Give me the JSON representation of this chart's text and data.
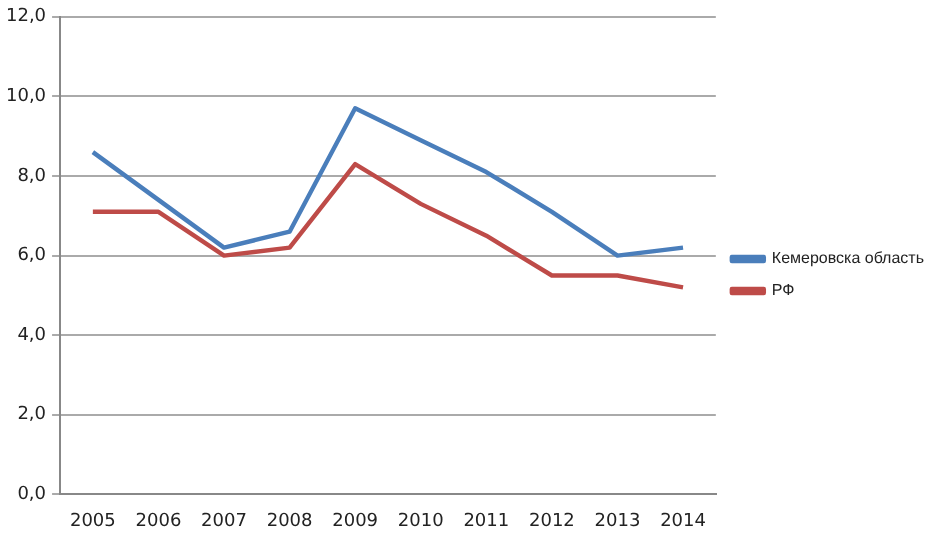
{
  "chart_data": {
    "type": "line",
    "categories": [
      "2005",
      "2006",
      "2007",
      "2008",
      "2009",
      "2010",
      "2011",
      "2012",
      "2013",
      "2014"
    ],
    "series": [
      {
        "name": "Кемеровска область",
        "color": "#4a7ebb",
        "values": [
          8.6,
          7.4,
          6.2,
          6.6,
          9.7,
          8.9,
          8.1,
          7.1,
          6.0,
          6.2
        ]
      },
      {
        "name": "РФ",
        "color": "#be4b48",
        "values": [
          7.1,
          7.1,
          6.0,
          6.2,
          8.3,
          7.3,
          6.5,
          5.5,
          5.5,
          5.2
        ]
      }
    ],
    "ylim": [
      0,
      12
    ],
    "yticks": [
      {
        "value": 0,
        "label": "0,0"
      },
      {
        "value": 2,
        "label": "2,0"
      },
      {
        "value": 4,
        "label": "4,0"
      },
      {
        "value": 6,
        "label": "6,0"
      },
      {
        "value": 8,
        "label": "8,0"
      },
      {
        "value": 10,
        "label": "10,0"
      },
      {
        "value": 12,
        "label": "12,0"
      }
    ],
    "grid": "y",
    "legend": "right",
    "marker": "none"
  }
}
